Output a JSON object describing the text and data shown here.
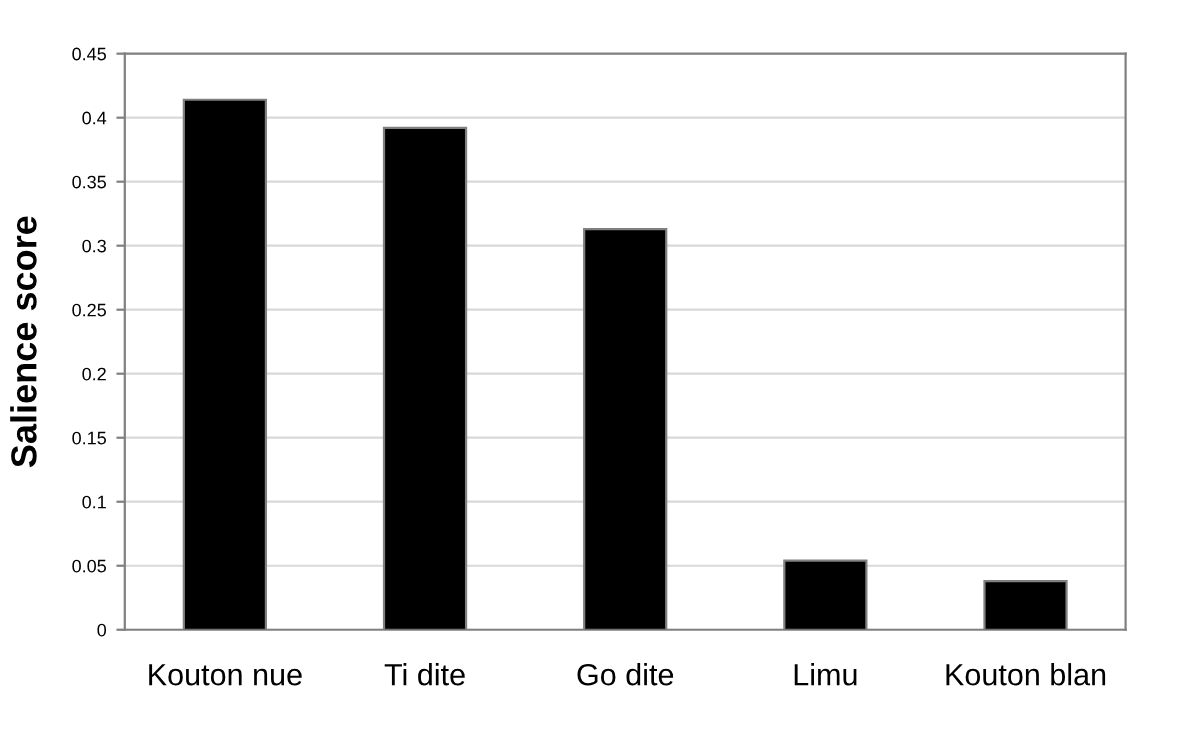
{
  "chart_data": {
    "type": "bar",
    "ylabel": "Salience score",
    "categories": [
      "Kouton nue",
      "Ti dite",
      "Go dite",
      "Limu",
      "Kouton blan"
    ],
    "values": [
      0.414,
      0.392,
      0.313,
      0.054,
      0.038
    ],
    "color": "#000000",
    "ylim": [
      0,
      0.45
    ],
    "yticks": [
      0,
      0.05,
      0.1,
      0.15,
      0.2,
      0.25,
      0.3,
      0.35,
      0.4,
      0.45
    ],
    "grid": "y",
    "legend": false
  }
}
